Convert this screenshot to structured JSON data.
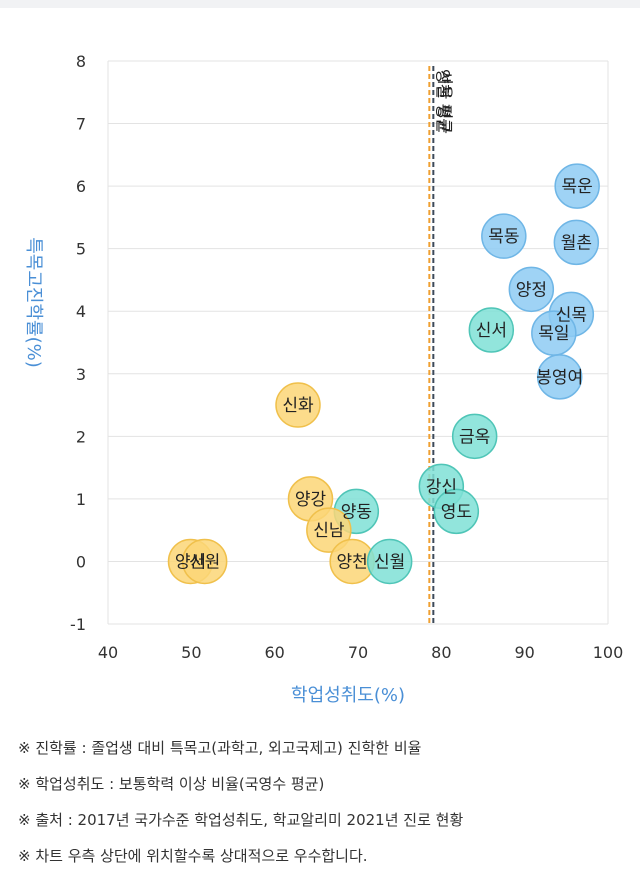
{
  "chart_data": {
    "type": "scatter",
    "xlabel": "학업성취도(%)",
    "ylabel": "특목고진학률(%)",
    "xlim": [
      40,
      100
    ],
    "ylim": [
      -1,
      8
    ],
    "xticks": [
      40,
      50,
      60,
      70,
      80,
      90,
      100
    ],
    "yticks": [
      -1,
      0,
      1,
      2,
      3,
      4,
      5,
      6,
      7,
      8
    ],
    "grid": "horizontal",
    "reference_line": {
      "x": 78.8,
      "label": "양천 평균",
      "label_duplicate": "서울 평균"
    },
    "colors": {
      "blue": "#8ecbf3",
      "teal": "#7fe0d6",
      "yellow": "#fbd677",
      "blue_edge": "#6fb6e6",
      "teal_edge": "#4fc5b7",
      "yellow_edge": "#f0c04b"
    },
    "points": [
      {
        "label": "목운",
        "x": 96.3,
        "y": 6.0,
        "color": "blue"
      },
      {
        "label": "목동",
        "x": 87.5,
        "y": 5.2,
        "color": "blue"
      },
      {
        "label": "월촌",
        "x": 96.2,
        "y": 5.1,
        "color": "blue"
      },
      {
        "label": "양정",
        "x": 90.8,
        "y": 4.35,
        "color": "blue"
      },
      {
        "label": "신목",
        "x": 95.6,
        "y": 3.95,
        "color": "blue"
      },
      {
        "label": "목일",
        "x": 93.5,
        "y": 3.65,
        "color": "blue"
      },
      {
        "label": "신서",
        "x": 86.0,
        "y": 3.7,
        "color": "teal"
      },
      {
        "label": "봉영여",
        "x": 94.2,
        "y": 2.95,
        "color": "blue"
      },
      {
        "label": "금옥",
        "x": 84.0,
        "y": 2.0,
        "color": "teal"
      },
      {
        "label": "신화",
        "x": 62.8,
        "y": 2.5,
        "color": "yellow"
      },
      {
        "label": "강신",
        "x": 80.0,
        "y": 1.2,
        "color": "teal"
      },
      {
        "label": "영도",
        "x": 81.8,
        "y": 0.8,
        "color": "teal"
      },
      {
        "label": "양강",
        "x": 64.3,
        "y": 1.0,
        "color": "yellow"
      },
      {
        "label": "양동",
        "x": 69.8,
        "y": 0.8,
        "color": "teal"
      },
      {
        "label": "신남",
        "x": 66.5,
        "y": 0.5,
        "color": "yellow"
      },
      {
        "label": "양천",
        "x": 69.3,
        "y": 0.0,
        "color": "yellow"
      },
      {
        "label": "신월",
        "x": 73.8,
        "y": 0.0,
        "color": "teal"
      },
      {
        "label": "양서",
        "x": 49.9,
        "y": 0.0,
        "color": "yellow"
      },
      {
        "label": "신원",
        "x": 51.6,
        "y": 0.0,
        "color": "yellow"
      }
    ]
  },
  "notes": [
    "※ 진학률 : 졸업생 대비 특목고(과학고, 외고국제고) 진학한 비율",
    "※ 학업성취도 : 보통학력 이상 비율(국영수 평균)",
    "※ 출처 : 2017년 국가수준 학업성취도, 학교알리미 2021년 진로 현황",
    "※ 차트 우측 상단에 위치할수록 상대적으로 우수합니다."
  ]
}
